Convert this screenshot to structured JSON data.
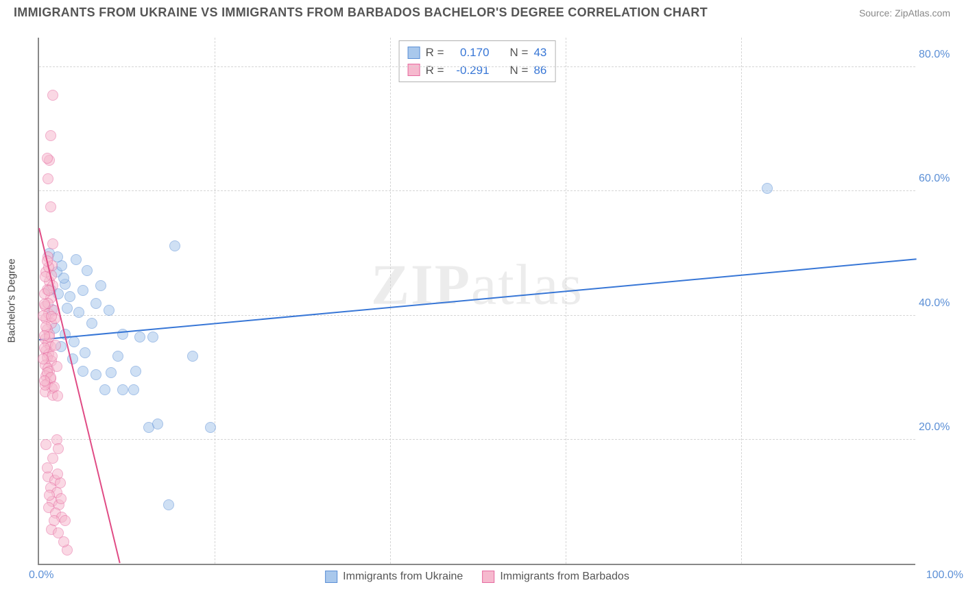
{
  "title": "IMMIGRANTS FROM UKRAINE VS IMMIGRANTS FROM BARBADOS BACHELOR'S DEGREE CORRELATION CHART",
  "source": "Source: ZipAtlas.com",
  "watermark_a": "ZIP",
  "watermark_b": "atlas",
  "chart": {
    "type": "scatter",
    "background_color": "#ffffff",
    "grid_color": "#d5d5d5",
    "axis_color": "#888888",
    "title_color": "#555555",
    "title_fontsize": 18,
    "tick_label_color": "#5b8fd6",
    "tick_fontsize": 16,
    "yaxis_title": "Bachelor's Degree",
    "yaxis_title_fontsize": 15,
    "xlim": [
      0,
      100
    ],
    "ylim": [
      0,
      85
    ],
    "xticks": [
      20,
      40,
      60,
      80
    ],
    "ytick_labels": [
      {
        "v": 20,
        "label": "20.0%"
      },
      {
        "v": 40,
        "label": "40.0%"
      },
      {
        "v": 60,
        "label": "60.0%"
      },
      {
        "v": 80,
        "label": "80.0%"
      }
    ],
    "x_start_label": "0.0%",
    "x_end_label": "100.0%",
    "marker_radius": 8,
    "marker_border_width": 1.5,
    "series": [
      {
        "name": "Immigrants from Ukraine",
        "fill_color": "#a9c8ec",
        "border_color": "#5b8fd6",
        "fill_opacity": 0.55,
        "r_label": "R =",
        "r_value": "0.170",
        "n_label": "N =",
        "n_value": "43",
        "trend": {
          "x1": 0,
          "y1": 36,
          "x2": 100,
          "y2": 49,
          "color": "#3776d6",
          "width": 2
        },
        "points": [
          [
            1.2,
            50
          ],
          [
            2.0,
            47
          ],
          [
            2.6,
            48
          ],
          [
            3.0,
            45
          ],
          [
            2.2,
            43.5
          ],
          [
            1.5,
            41
          ],
          [
            3.2,
            41.2
          ],
          [
            5.0,
            44
          ],
          [
            6.5,
            42
          ],
          [
            8.0,
            40.8
          ],
          [
            9.5,
            37
          ],
          [
            11.5,
            36.5
          ],
          [
            13.0,
            36.5
          ],
          [
            15.5,
            51.2
          ],
          [
            5.5,
            47.2
          ],
          [
            7.0,
            44.8
          ],
          [
            4.2,
            49
          ],
          [
            3.8,
            33
          ],
          [
            5.0,
            31
          ],
          [
            6.5,
            30.5
          ],
          [
            8.2,
            30.8
          ],
          [
            9.0,
            33.5
          ],
          [
            11.0,
            31
          ],
          [
            7.5,
            28
          ],
          [
            9.5,
            28
          ],
          [
            10.8,
            28
          ],
          [
            17.5,
            33.5
          ],
          [
            12.5,
            22
          ],
          [
            13.5,
            22.5
          ],
          [
            19.5,
            22
          ],
          [
            14.8,
            9.5
          ],
          [
            3.0,
            37
          ],
          [
            2.5,
            35
          ],
          [
            1.8,
            38
          ],
          [
            1.3,
            44.2
          ],
          [
            83.0,
            60.5
          ],
          [
            4.5,
            40.5
          ],
          [
            6.0,
            38.8
          ],
          [
            2.8,
            46
          ],
          [
            3.5,
            43
          ],
          [
            4.0,
            35.8
          ],
          [
            5.2,
            34
          ],
          [
            2.1,
            49.5
          ]
        ]
      },
      {
        "name": "Immigrants from Barbados",
        "fill_color": "#f6b9ce",
        "border_color": "#e66aa0",
        "fill_opacity": 0.55,
        "r_label": "R =",
        "r_value": "-0.291",
        "n_label": "N =",
        "n_value": "86",
        "trend": {
          "x1": 0,
          "y1": 54,
          "x2": 9.2,
          "y2": 0,
          "color": "#e04b85",
          "width": 2
        },
        "points": [
          [
            1.6,
            75.5
          ],
          [
            1.3,
            69
          ],
          [
            1.2,
            65
          ],
          [
            0.9,
            65.3
          ],
          [
            1.0,
            62
          ],
          [
            1.3,
            57.5
          ],
          [
            1.6,
            51.5
          ],
          [
            1.0,
            49.5
          ],
          [
            1.5,
            48
          ],
          [
            0.8,
            47
          ],
          [
            1.2,
            45.5
          ],
          [
            0.9,
            44.2
          ],
          [
            1.3,
            42.8
          ],
          [
            0.7,
            41.5
          ],
          [
            1.1,
            40.3
          ],
          [
            0.8,
            39.5
          ],
          [
            1.4,
            38.7
          ],
          [
            0.9,
            37.8
          ],
          [
            1.2,
            37.0
          ],
          [
            0.7,
            36.2
          ],
          [
            1.0,
            35.5
          ],
          [
            1.3,
            35.0
          ],
          [
            0.8,
            34.3
          ],
          [
            1.1,
            33.8
          ],
          [
            0.9,
            33.2
          ],
          [
            1.4,
            32.7
          ],
          [
            0.7,
            32.0
          ],
          [
            1.0,
            31.5
          ],
          [
            1.2,
            31.0
          ],
          [
            0.8,
            30.3
          ],
          [
            1.3,
            29.8
          ],
          [
            0.9,
            29.0
          ],
          [
            1.5,
            28.3
          ],
          [
            0.7,
            27.7
          ],
          [
            1.1,
            47.8
          ],
          [
            1.4,
            46.5
          ],
          [
            0.6,
            43.5
          ],
          [
            1.0,
            42.0
          ],
          [
            1.7,
            40.8
          ],
          [
            0.8,
            38.2
          ],
          [
            1.2,
            36.5
          ],
          [
            0.6,
            34.8
          ],
          [
            1.5,
            33.5
          ],
          [
            0.9,
            30.8
          ],
          [
            1.3,
            30.0
          ],
          [
            0.7,
            28.8
          ],
          [
            1.6,
            27.2
          ],
          [
            2.0,
            20
          ],
          [
            2.2,
            18.5
          ],
          [
            1.0,
            14
          ],
          [
            1.8,
            13.5
          ],
          [
            2.4,
            13
          ],
          [
            1.3,
            12.2
          ],
          [
            2.0,
            11.5
          ],
          [
            1.5,
            10
          ],
          [
            2.3,
            9.5
          ],
          [
            1.1,
            9.0
          ],
          [
            1.9,
            8.2
          ],
          [
            2.6,
            7.5
          ],
          [
            3.0,
            7.0
          ],
          [
            1.4,
            5.5
          ],
          [
            3.2,
            2.2
          ],
          [
            0.9,
            48.8
          ],
          [
            1.6,
            44.8
          ],
          [
            0.5,
            40
          ],
          [
            1.8,
            39.5
          ],
          [
            0.6,
            36.8
          ],
          [
            1.9,
            35.2
          ],
          [
            0.5,
            33.0
          ],
          [
            2.0,
            31.8
          ],
          [
            0.6,
            29.5
          ],
          [
            1.7,
            28.5
          ],
          [
            2.1,
            27.0
          ],
          [
            0.8,
            19.2
          ],
          [
            1.6,
            17
          ],
          [
            0.9,
            15.5
          ],
          [
            2.1,
            14.5
          ],
          [
            1.2,
            11
          ],
          [
            2.5,
            10.5
          ],
          [
            1.7,
            7.0
          ],
          [
            2.2,
            5.0
          ],
          [
            2.8,
            3.5
          ],
          [
            0.7,
            46.2
          ],
          [
            1.1,
            44
          ],
          [
            0.6,
            41.8
          ],
          [
            1.4,
            39.8
          ]
        ]
      }
    ],
    "legend_bottom": [
      {
        "label": "Immigrants from Ukraine",
        "fill": "#a9c8ec",
        "border": "#5b8fd6"
      },
      {
        "label": "Immigrants from Barbados",
        "fill": "#f6b9ce",
        "border": "#e66aa0"
      }
    ]
  }
}
